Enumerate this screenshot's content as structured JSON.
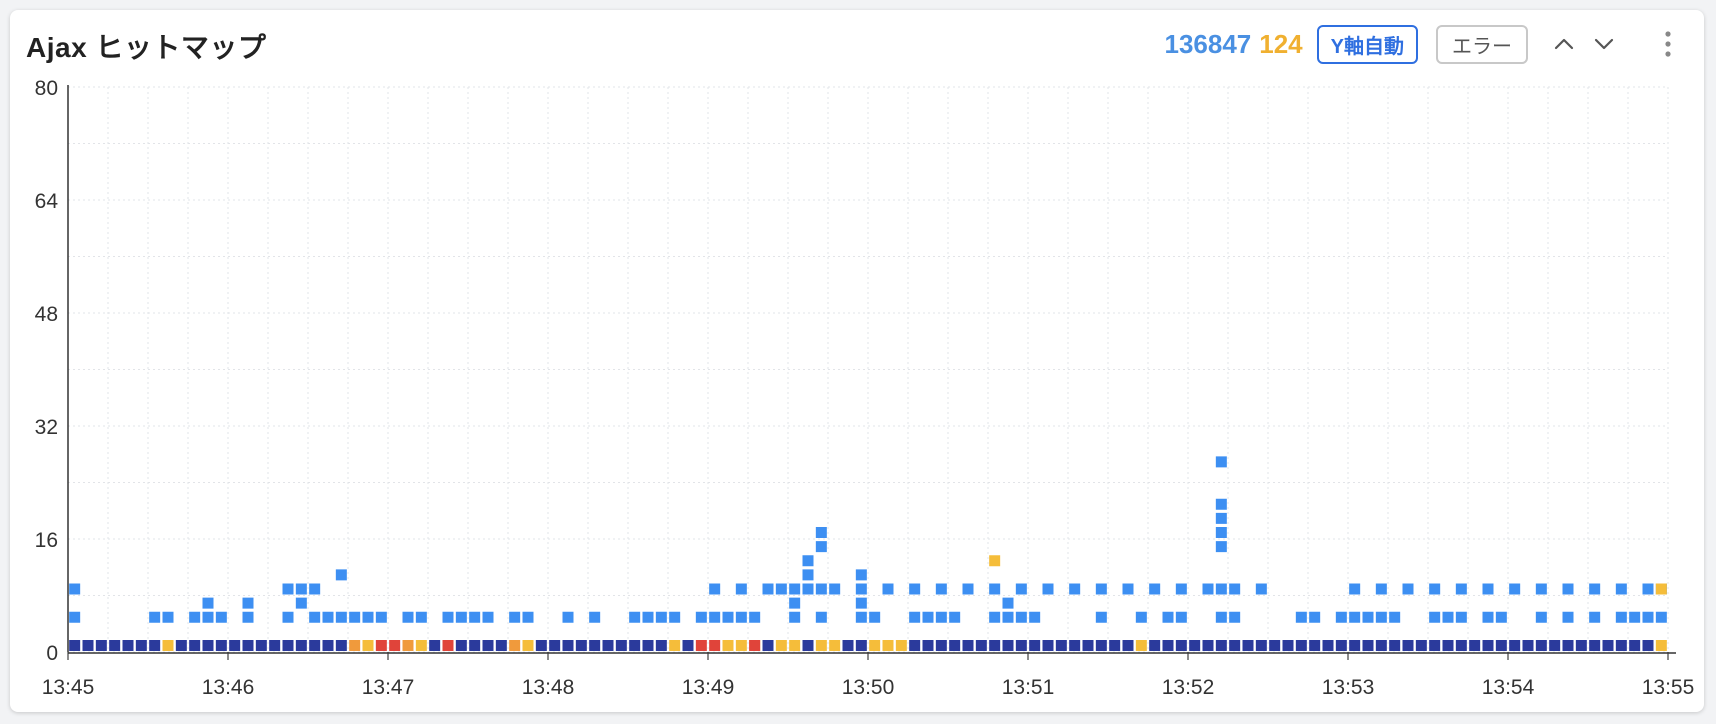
{
  "header": {
    "title": "Ajax ヒットマップ",
    "total_count": "136847",
    "error_count": "124",
    "y_axis_button": "Y軸自動",
    "error_button": "エラー"
  },
  "icons": {
    "up": "chevron-up-icon",
    "down": "chevron-down-icon",
    "more": "more-vertical-icon"
  },
  "colors": {
    "normal_dark": "#2b3a9c",
    "normal_light": "#3d8ff2",
    "warn": "#f5bd3a",
    "orange": "#f09a3c",
    "error": "#e0443a"
  },
  "chart_data": {
    "type": "heatmap",
    "title": "Ajax ヒットマップ",
    "xlabel": "",
    "ylabel": "",
    "ylim": [
      0,
      80
    ],
    "yticks": [
      "0",
      "16",
      "32",
      "48",
      "64",
      "80"
    ],
    "xticks": [
      "13:45",
      "13:46",
      "13:47",
      "13:48",
      "13:49",
      "13:50",
      "13:51",
      "13:52",
      "13:53",
      "13:54",
      "13:55"
    ],
    "xlim": [
      "13:45",
      "13:55"
    ],
    "grid": true,
    "cells_light": [
      {
        "t": "13:45:00",
        "y": [
          4,
          8
        ]
      },
      {
        "t": "13:45:30",
        "y": [
          4
        ]
      },
      {
        "t": "13:45:35",
        "y": [
          4
        ]
      },
      {
        "t": "13:45:45",
        "y": [
          4
        ]
      },
      {
        "t": "13:45:50",
        "y": [
          4,
          6
        ]
      },
      {
        "t": "13:45:55",
        "y": [
          4
        ]
      },
      {
        "t": "13:46:05",
        "y": [
          4,
          6
        ]
      },
      {
        "t": "13:46:20",
        "y": [
          4,
          8
        ]
      },
      {
        "t": "13:46:25",
        "y": [
          6,
          8
        ]
      },
      {
        "t": "13:46:30",
        "y": [
          4,
          8
        ]
      },
      {
        "t": "13:46:35",
        "y": [
          4
        ]
      },
      {
        "t": "13:46:40",
        "y": [
          4,
          10
        ]
      },
      {
        "t": "13:46:45",
        "y": [
          4
        ]
      },
      {
        "t": "13:46:50",
        "y": [
          4
        ]
      },
      {
        "t": "13:46:55",
        "y": [
          4
        ]
      },
      {
        "t": "13:47:05",
        "y": [
          4
        ]
      },
      {
        "t": "13:47:10",
        "y": [
          4
        ]
      },
      {
        "t": "13:47:20",
        "y": [
          4
        ]
      },
      {
        "t": "13:47:25",
        "y": [
          4
        ]
      },
      {
        "t": "13:47:30",
        "y": [
          4
        ]
      },
      {
        "t": "13:47:35",
        "y": [
          4
        ]
      },
      {
        "t": "13:47:45",
        "y": [
          4
        ]
      },
      {
        "t": "13:47:50",
        "y": [
          4
        ]
      },
      {
        "t": "13:48:05",
        "y": [
          4
        ]
      },
      {
        "t": "13:48:15",
        "y": [
          4
        ]
      },
      {
        "t": "13:48:30",
        "y": [
          4
        ]
      },
      {
        "t": "13:48:35",
        "y": [
          4
        ]
      },
      {
        "t": "13:48:40",
        "y": [
          4
        ]
      },
      {
        "t": "13:48:45",
        "y": [
          4
        ]
      },
      {
        "t": "13:48:55",
        "y": [
          4
        ]
      },
      {
        "t": "13:49:00",
        "y": [
          4,
          8
        ]
      },
      {
        "t": "13:49:05",
        "y": [
          4
        ]
      },
      {
        "t": "13:49:10",
        "y": [
          4,
          8
        ]
      },
      {
        "t": "13:49:15",
        "y": [
          4
        ]
      },
      {
        "t": "13:49:20",
        "y": [
          8
        ]
      },
      {
        "t": "13:49:25",
        "y": [
          8
        ]
      },
      {
        "t": "13:49:30",
        "y": [
          4,
          6,
          8
        ]
      },
      {
        "t": "13:49:35",
        "y": [
          8,
          10,
          12
        ]
      },
      {
        "t": "13:49:40",
        "y": [
          4,
          8,
          14,
          16
        ]
      },
      {
        "t": "13:49:45",
        "y": [
          8
        ]
      },
      {
        "t": "13:49:55",
        "y": [
          4,
          6,
          8,
          10
        ]
      },
      {
        "t": "13:50:00",
        "y": [
          4
        ]
      },
      {
        "t": "13:50:05",
        "y": [
          8
        ]
      },
      {
        "t": "13:50:15",
        "y": [
          4,
          8
        ]
      },
      {
        "t": "13:50:20",
        "y": [
          4
        ]
      },
      {
        "t": "13:50:25",
        "y": [
          4,
          8
        ]
      },
      {
        "t": "13:50:30",
        "y": [
          4
        ]
      },
      {
        "t": "13:50:35",
        "y": [
          8
        ]
      },
      {
        "t": "13:50:45",
        "y": [
          4,
          8
        ]
      },
      {
        "t": "13:50:50",
        "y": [
          4,
          6
        ]
      },
      {
        "t": "13:50:55",
        "y": [
          4,
          8
        ]
      },
      {
        "t": "13:51:00",
        "y": [
          4
        ]
      },
      {
        "t": "13:51:05",
        "y": [
          8
        ]
      },
      {
        "t": "13:51:15",
        "y": [
          8
        ]
      },
      {
        "t": "13:51:25",
        "y": [
          4,
          8
        ]
      },
      {
        "t": "13:51:35",
        "y": [
          8
        ]
      },
      {
        "t": "13:51:40",
        "y": [
          4
        ]
      },
      {
        "t": "13:51:45",
        "y": [
          8
        ]
      },
      {
        "t": "13:51:50",
        "y": [
          4
        ]
      },
      {
        "t": "13:51:55",
        "y": [
          4,
          8
        ]
      },
      {
        "t": "13:52:05",
        "y": [
          8
        ]
      },
      {
        "t": "13:52:10",
        "y": [
          4,
          8,
          14,
          16,
          18,
          20,
          26
        ]
      },
      {
        "t": "13:52:15",
        "y": [
          4,
          8
        ]
      },
      {
        "t": "13:52:25",
        "y": [
          8
        ]
      },
      {
        "t": "13:52:40",
        "y": [
          4
        ]
      },
      {
        "t": "13:52:45",
        "y": [
          4
        ]
      },
      {
        "t": "13:52:55",
        "y": [
          4
        ]
      },
      {
        "t": "13:53:00",
        "y": [
          4,
          8
        ]
      },
      {
        "t": "13:53:05",
        "y": [
          4
        ]
      },
      {
        "t": "13:53:10",
        "y": [
          4,
          8
        ]
      },
      {
        "t": "13:53:15",
        "y": [
          4
        ]
      },
      {
        "t": "13:53:20",
        "y": [
          8
        ]
      },
      {
        "t": "13:53:30",
        "y": [
          4,
          8
        ]
      },
      {
        "t": "13:53:35",
        "y": [
          4
        ]
      },
      {
        "t": "13:53:40",
        "y": [
          4,
          8
        ]
      },
      {
        "t": "13:53:50",
        "y": [
          4,
          8
        ]
      },
      {
        "t": "13:53:55",
        "y": [
          4
        ]
      },
      {
        "t": "13:54:00",
        "y": [
          8
        ]
      },
      {
        "t": "13:54:10",
        "y": [
          4,
          8
        ]
      },
      {
        "t": "13:54:20",
        "y": [
          4,
          8
        ]
      },
      {
        "t": "13:54:30",
        "y": [
          4,
          8
        ]
      },
      {
        "t": "13:54:40",
        "y": [
          4,
          8
        ]
      },
      {
        "t": "13:54:45",
        "y": [
          4
        ]
      },
      {
        "t": "13:54:50",
        "y": [
          4,
          8
        ]
      },
      {
        "t": "13:54:55",
        "y": [
          4,
          8
        ]
      }
    ],
    "cells_yellow": [
      {
        "t": "13:45:35",
        "y": [
          0
        ]
      },
      {
        "t": "13:46:50",
        "y": [
          0
        ]
      },
      {
        "t": "13:47:10",
        "y": [
          0
        ]
      },
      {
        "t": "13:47:50",
        "y": [
          0
        ]
      },
      {
        "t": "13:48:45",
        "y": [
          0
        ]
      },
      {
        "t": "13:49:05",
        "y": [
          0
        ]
      },
      {
        "t": "13:49:10",
        "y": [
          0
        ]
      },
      {
        "t": "13:49:25",
        "y": [
          0
        ]
      },
      {
        "t": "13:49:30",
        "y": [
          0
        ]
      },
      {
        "t": "13:49:40",
        "y": [
          0
        ]
      },
      {
        "t": "13:49:45",
        "y": [
          0
        ]
      },
      {
        "t": "13:50:00",
        "y": [
          0
        ]
      },
      {
        "t": "13:50:05",
        "y": [
          0
        ]
      },
      {
        "t": "13:50:10",
        "y": [
          0
        ]
      },
      {
        "t": "13:51:40",
        "y": [
          0
        ]
      },
      {
        "t": "13:50:45",
        "y": [
          12
        ]
      },
      {
        "t": "13:54:55",
        "y": [
          0,
          8
        ]
      }
    ],
    "cells_orange": [
      {
        "t": "13:46:45",
        "y": [
          0
        ]
      },
      {
        "t": "13:47:05",
        "y": [
          0
        ]
      },
      {
        "t": "13:47:45",
        "y": [
          0
        ]
      },
      {
        "t": "13:49:15",
        "y": [
          0
        ]
      }
    ],
    "cells_red": [
      {
        "t": "13:46:55",
        "y": [
          0
        ]
      },
      {
        "t": "13:47:00",
        "y": [
          0
        ]
      },
      {
        "t": "13:47:20",
        "y": [
          0
        ]
      },
      {
        "t": "13:48:55",
        "y": [
          0
        ]
      },
      {
        "t": "13:49:00",
        "y": [
          0
        ]
      },
      {
        "t": "13:49:15",
        "y": [
          0
        ]
      }
    ]
  }
}
